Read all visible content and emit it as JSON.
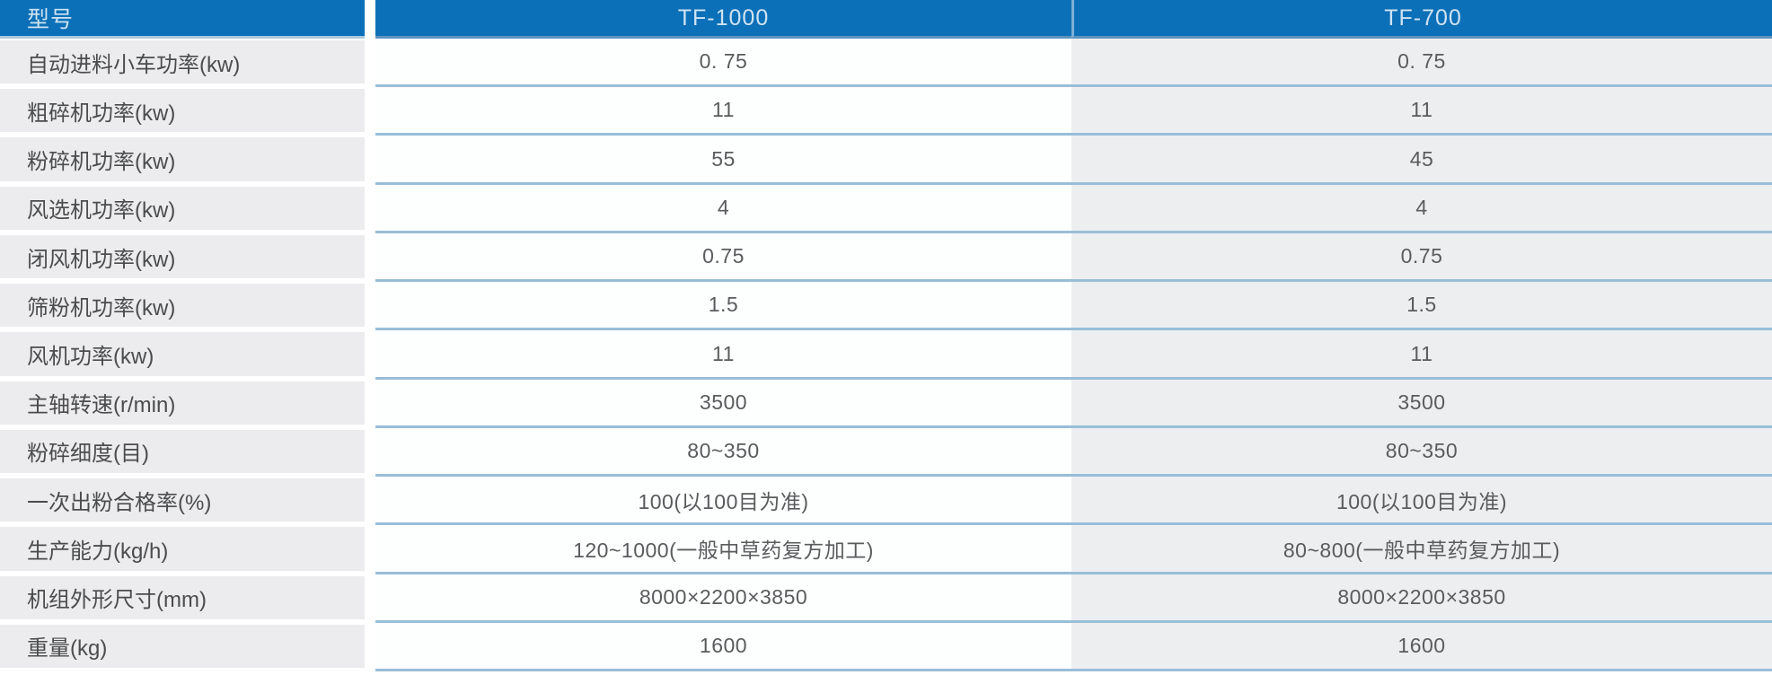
{
  "table": {
    "title": "machine-specification-table",
    "header": {
      "model_label": "型号",
      "columns": [
        "TF-1000",
        "TF-700"
      ]
    },
    "rows": [
      {
        "label": "自动进料小车功率(kw)",
        "tf1000": "0. 75",
        "tf700": "0. 75"
      },
      {
        "label": "粗碎机功率(kw)",
        "tf1000": "11",
        "tf700": "11"
      },
      {
        "label": "粉碎机功率(kw)",
        "tf1000": "55",
        "tf700": "45"
      },
      {
        "label": "风选机功率(kw)",
        "tf1000": "4",
        "tf700": "4"
      },
      {
        "label": "闭风机功率(kw)",
        "tf1000": "0.75",
        "tf700": "0.75"
      },
      {
        "label": "筛粉机功率(kw)",
        "tf1000": "1.5",
        "tf700": "1.5"
      },
      {
        "label": "风机功率(kw)",
        "tf1000": "11",
        "tf700": "11"
      },
      {
        "label": "主轴转速(r/min)",
        "tf1000": "3500",
        "tf700": "3500"
      },
      {
        "label": "粉碎细度(目)",
        "tf1000": "80~350",
        "tf700": "80~350"
      },
      {
        "label": "一次出粉合格率(%)",
        "tf1000": "100(以100目为准)",
        "tf700": "100(以100目为准)"
      },
      {
        "label": "生产能力(kg/h)",
        "tf1000": "120~1000(一般中草药复方加工)",
        "tf700": "80~800(一般中草药复方加工)"
      },
      {
        "label": "机组外形尺寸(mm)",
        "tf1000": "8000×2200×3850",
        "tf700": "8000×2200×3850"
      },
      {
        "label": "重量(kg)",
        "tf1000": "1600",
        "tf700": "1600"
      }
    ],
    "colors": {
      "header_bg": "#0c70b8",
      "header_text": "#cfe3f2",
      "header_column_divider": "#7fb0d4",
      "row_separator": "#98bed8",
      "label_cell_bg": "#ececee",
      "tf700_cell_bg": "#edeef0",
      "tf1000_cell_bg": "#fdfefe",
      "label_text": "#4b4c4e",
      "value_text": "#5a5b5d"
    }
  }
}
